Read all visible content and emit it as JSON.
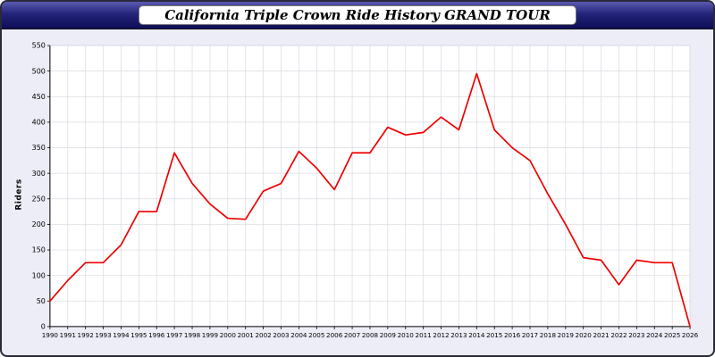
{
  "header": {
    "title": "California Triple Crown Ride History GRAND TOUR"
  },
  "colors": {
    "line": "#ee0000",
    "grid": "#d9d9e3",
    "axis": "#000000",
    "plot_bg": "#ffffff",
    "panel_bg": "#ecedf7",
    "header_dark": "#0d0d55"
  },
  "chart_data": {
    "type": "line",
    "title": "California Triple Crown Ride History GRAND TOUR",
    "xlabel": "",
    "ylabel": "Riders",
    "ylim": [
      0,
      550
    ],
    "ytick": 50,
    "grid": true,
    "legend": "none",
    "x": [
      1990,
      1991,
      1992,
      1993,
      1994,
      1995,
      1996,
      1997,
      1998,
      1999,
      2000,
      2001,
      2002,
      2003,
      2004,
      2005,
      2006,
      2007,
      2008,
      2009,
      2010,
      2011,
      2012,
      2013,
      2014,
      2015,
      2016,
      2017,
      2018,
      2019,
      2020,
      2021,
      2022,
      2023,
      2024,
      2025,
      2026
    ],
    "values": [
      50,
      90,
      125,
      125,
      160,
      225,
      225,
      340,
      280,
      240,
      212,
      210,
      265,
      280,
      343,
      310,
      268,
      340,
      340,
      390,
      375,
      380,
      410,
      385,
      495,
      385,
      350,
      325,
      260,
      200,
      135,
      130,
      82,
      130,
      125,
      125,
      0
    ],
    "series_name": "Riders",
    "line_color": "#ee0000"
  }
}
